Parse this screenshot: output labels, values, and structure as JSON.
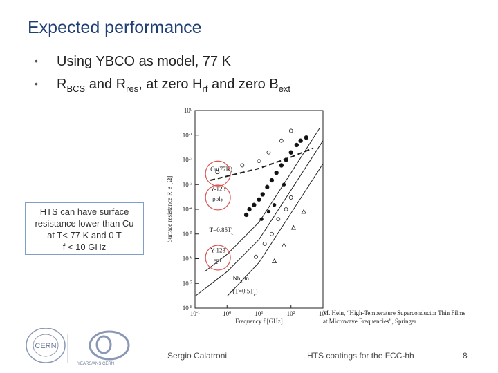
{
  "slide": {
    "title": "Expected performance",
    "bullets": [
      {
        "pre": "Using YBCO as model, 77 K"
      },
      {
        "r1": "R",
        "r1_sub": "BCS",
        "and1": " and R",
        "r2_sub": "res",
        "mid": ", at zero H",
        "h_sub": "rf",
        "and2": " and zero B",
        "b_sub": "ext"
      }
    ],
    "bullet_glyph": "•",
    "callout_lines": [
      "HTS can have surface",
      "resistance lower than Cu",
      "at T< 77 K and 0 T",
      "f < 10 GHz"
    ],
    "reference_lines": [
      "M. Hein, “High-Temperature Superconductor Thin Films",
      "at Microwave Frequencies”, Springer"
    ],
    "footer": {
      "author": "Sergio Calatroni",
      "event": "HTS coatings for the FCC-hh",
      "page": "8"
    },
    "logos": {
      "cern": "CERN",
      "anniversary": "YEARS/ANS CERN"
    },
    "colors": {
      "title": "#1f3f73",
      "highlight_circle": "#d9534f",
      "callout_border": "#7f9fc8"
    }
  },
  "chart_data": {
    "type": "scatter",
    "xlabel": "Frequency f [GHz]",
    "ylabel": "Surface resistance R_s [Ω]",
    "xscale": "log",
    "yscale": "log",
    "xlim": [
      0.1,
      1000
    ],
    "ylim": [
      1e-08,
      1
    ],
    "x_ticks": [
      {
        "base": "10",
        "exp": "-1"
      },
      {
        "base": "10",
        "exp": "0"
      },
      {
        "base": "10",
        "exp": "1"
      },
      {
        "base": "10",
        "exp": "2"
      },
      {
        "base": "10",
        "exp": "3"
      }
    ],
    "y_ticks": [
      {
        "base": "10",
        "exp": "0"
      },
      {
        "base": "10",
        "exp": "-1"
      },
      {
        "base": "10",
        "exp": "-2"
      },
      {
        "base": "10",
        "exp": "-3"
      },
      {
        "base": "10",
        "exp": "-4"
      },
      {
        "base": "10",
        "exp": "-5"
      },
      {
        "base": "10",
        "exp": "-6"
      },
      {
        "base": "10",
        "exp": "-7"
      },
      {
        "base": "10",
        "exp": "-8"
      }
    ],
    "annotations": {
      "cu": "Cu(77K)",
      "ypoly_1": "Y-123",
      "ypoly_2": "poly",
      "t085": "T=0.85T",
      "t085_sub": "c",
      "yepi_1": "Y-123",
      "yepi_2": "epi",
      "nb3sn_1": "Nb",
      "nb3sn_sub": "3",
      "nb3sn_2": "Sn",
      "nb3sn_3": "(T=0.5T",
      "nb3sn_3_sub": "c",
      "nb3sn_3_end": ")"
    },
    "series": [
      {
        "values": [
          [
            0.5,
            0.0032
          ],
          [
            3,
            0.006
          ],
          [
            10,
            0.009
          ],
          [
            20,
            0.02
          ],
          [
            50,
            0.06
          ],
          [
            100,
            0.15
          ]
        ]
      },
      {
        "values": [
          [
            8,
            1.2e-06
          ],
          [
            15,
            4e-06
          ],
          [
            25,
            1e-05
          ],
          [
            40,
            4e-05
          ],
          [
            70,
            0.0001
          ],
          [
            100,
            0.0003
          ]
        ]
      },
      {
        "values": [
          [
            30,
            8e-07
          ],
          [
            60,
            3.5e-06
          ],
          [
            120,
            1.8e-05
          ],
          [
            250,
            8e-05
          ]
        ]
      },
      {
        "values": [
          [
            4,
            6e-05
          ],
          [
            5,
            0.0001
          ],
          [
            7,
            0.00015
          ],
          [
            10,
            0.00025
          ],
          [
            13,
            0.0004
          ],
          [
            18,
            0.0008
          ],
          [
            25,
            0.0015
          ],
          [
            35,
            0.003
          ],
          [
            50,
            0.006
          ],
          [
            70,
            0.01
          ],
          [
            100,
            0.02
          ],
          [
            150,
            0.04
          ],
          [
            200,
            0.06
          ],
          [
            300,
            0.08
          ]
        ]
      },
      {
        "values": [
          [
            12,
            4e-05
          ],
          [
            20,
            8e-05
          ],
          [
            30,
            0.00015
          ],
          [
            60,
            0.001
          ]
        ]
      }
    ],
    "lines": [
      {
        "style": "dashed",
        "values": [
          [
            0.3,
            0.0015
          ],
          [
            10,
            0.0045
          ],
          [
            100,
            0.013
          ],
          [
            500,
            0.03
          ]
        ]
      },
      {
        "style": "solid",
        "values": [
          [
            0.2,
            3e-07
          ],
          [
            1,
            1.5e-06
          ],
          [
            10,
            3e-05
          ],
          [
            100,
            0.003
          ],
          [
            800,
            0.2
          ]
        ]
      },
      {
        "style": "solid",
        "values": [
          [
            0.1,
            3e-08
          ],
          [
            1,
            3e-07
          ],
          [
            10,
            6e-06
          ],
          [
            100,
            0.0006
          ],
          [
            1000,
            0.06
          ]
        ]
      },
      {
        "style": "solid",
        "values": [
          [
            1,
            3e-08
          ],
          [
            10,
            7e-07
          ],
          [
            100,
            7e-05
          ],
          [
            1000,
            0.007
          ]
        ]
      }
    ],
    "grid": false
  }
}
